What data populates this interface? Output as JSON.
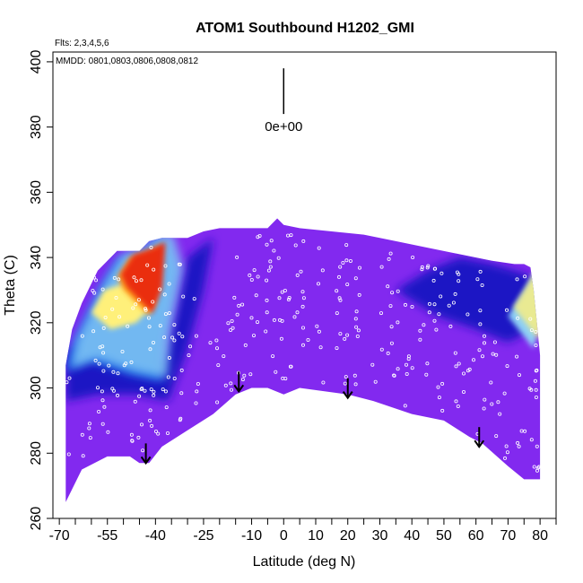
{
  "chart_data": {
    "type": "heatmap",
    "title": "ATOM1 Southbound H1202_GMI",
    "flights_note": "Flts: 2,3,4,5,6",
    "dates_note": "MMDD: 0801,0803,0806,0808,0812",
    "xlabel": "Latitude (deg N)",
    "ylabel": "Theta (C)",
    "xlim": [
      -72,
      85
    ],
    "ylim": [
      260,
      403
    ],
    "x_ticks": [
      -70,
      -55,
      -40,
      -25,
      -10,
      0,
      10,
      20,
      30,
      40,
      50,
      60,
      70,
      80
    ],
    "x_tick_labels": [
      "-70",
      "-55",
      "-40",
      "-25",
      "-10",
      "0",
      "10",
      "20",
      "30",
      "40",
      "50",
      "60",
      "70",
      "80"
    ],
    "x_minor_ticks": [
      -65,
      -60,
      -50,
      -45,
      -35,
      -30,
      -20,
      -15,
      -5,
      5,
      15,
      25,
      35,
      45,
      55,
      65,
      75,
      85
    ],
    "y_ticks": [
      260,
      280,
      300,
      320,
      340,
      360,
      380,
      400
    ],
    "y_tick_labels": [
      "260",
      "280",
      "300",
      "320",
      "340",
      "360",
      "380",
      "400"
    ],
    "scale_bar_label": "0e+00",
    "scale_bar_x": 0,
    "scale_bar_y": [
      384,
      398
    ],
    "top_boundary": [
      [
        -68,
        307
      ],
      [
        -66,
        318
      ],
      [
        -63,
        326
      ],
      [
        -58,
        336
      ],
      [
        -52,
        342
      ],
      [
        -45,
        342
      ],
      [
        -42,
        345
      ],
      [
        -38,
        346
      ],
      [
        -30,
        346
      ],
      [
        -25,
        348
      ],
      [
        -20,
        349
      ],
      [
        -5,
        349
      ],
      [
        -2,
        352
      ],
      [
        0,
        350
      ],
      [
        5,
        349
      ],
      [
        15,
        348
      ],
      [
        25,
        347
      ],
      [
        35,
        345
      ],
      [
        45,
        343
      ],
      [
        55,
        341
      ],
      [
        65,
        339
      ],
      [
        72,
        338
      ],
      [
        75,
        338
      ],
      [
        77,
        337
      ],
      [
        78,
        330
      ],
      [
        79,
        320
      ],
      [
        80,
        310
      ]
    ],
    "bottom_boundary": [
      [
        -68,
        265
      ],
      [
        -63,
        275
      ],
      [
        -55,
        279
      ],
      [
        -48,
        279
      ],
      [
        -45,
        277
      ],
      [
        -42,
        277
      ],
      [
        -38,
        282
      ],
      [
        -30,
        287
      ],
      [
        -22,
        292
      ],
      [
        -15,
        298
      ],
      [
        -10,
        300
      ],
      [
        -5,
        300
      ],
      [
        0,
        298
      ],
      [
        5,
        300
      ],
      [
        20,
        298
      ],
      [
        28,
        296
      ],
      [
        40,
        292
      ],
      [
        50,
        290
      ],
      [
        58,
        285
      ],
      [
        62,
        283
      ],
      [
        70,
        276
      ],
      [
        75,
        272
      ],
      [
        80,
        272
      ]
    ],
    "arrows_at_lat": [
      -43,
      -14,
      20,
      61
    ],
    "arrow_tops": [
      283,
      305,
      303,
      288
    ],
    "hot_patch_outline": [
      [
        -68,
        305
      ],
      [
        -66,
        314
      ],
      [
        -62,
        322
      ],
      [
        -57,
        332
      ],
      [
        -52,
        340
      ],
      [
        -45,
        342
      ],
      [
        -40,
        346
      ],
      [
        -36,
        346
      ],
      [
        -33,
        336
      ],
      [
        -37,
        316
      ],
      [
        -38,
        302
      ],
      [
        -48,
        304
      ],
      [
        -60,
        308
      ]
    ],
    "red_core_outline": [
      [
        -52,
        334
      ],
      [
        -48,
        340
      ],
      [
        -42,
        342
      ],
      [
        -38,
        344
      ],
      [
        -39,
        330
      ],
      [
        -42,
        322
      ],
      [
        -46,
        326
      ],
      [
        -50,
        330
      ]
    ],
    "yellow_core_outline": [
      [
        -60,
        323
      ],
      [
        -56,
        330
      ],
      [
        -50,
        332
      ],
      [
        -43,
        332
      ],
      [
        -40,
        326
      ],
      [
        -46,
        320
      ],
      [
        -54,
        318
      ]
    ],
    "north_hot_outline": [
      [
        70,
        322
      ],
      [
        75,
        330
      ],
      [
        79,
        337
      ],
      [
        80,
        320
      ],
      [
        78,
        312
      ]
    ],
    "blue_band_outline": [
      [
        -68,
        296
      ],
      [
        -68,
        312
      ],
      [
        -60,
        312
      ],
      [
        -50,
        310
      ],
      [
        -38,
        308
      ],
      [
        -34,
        322
      ],
      [
        -30,
        340
      ],
      [
        -22,
        346
      ],
      [
        -25,
        330
      ],
      [
        -30,
        312
      ],
      [
        -36,
        296
      ],
      [
        -46,
        298
      ],
      [
        -58,
        298
      ]
    ],
    "ne_blue_outline": [
      [
        35,
        330
      ],
      [
        45,
        336
      ],
      [
        55,
        340
      ],
      [
        65,
        338
      ],
      [
        72,
        336
      ],
      [
        78,
        334
      ],
      [
        78,
        318
      ],
      [
        70,
        314
      ],
      [
        60,
        318
      ],
      [
        48,
        322
      ]
    ],
    "colors": {
      "purple": "#8229ef",
      "navy": "#1a14c4",
      "blue": "#1f6fe8",
      "lightblue": "#8fd0f5",
      "yellow": "#fff07a",
      "orange": "#ffa020",
      "red": "#e82010",
      "axis": "#000000",
      "dots": "#ffffff"
    }
  }
}
